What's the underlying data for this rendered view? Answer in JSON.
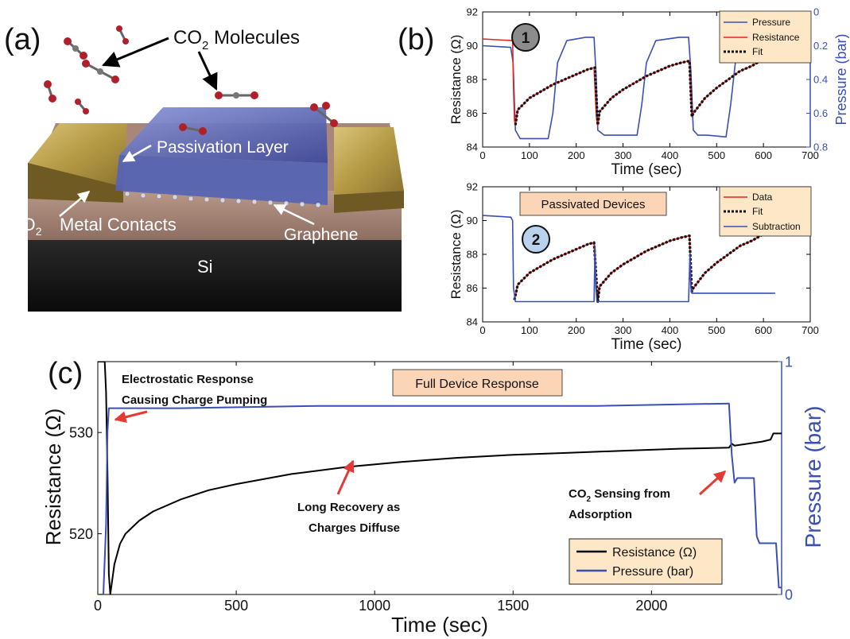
{
  "panel_labels": {
    "a": "(a)",
    "b": "(b)",
    "c": "(c)"
  },
  "panel_a": {
    "co2_label": "CO",
    "co2_sub": "2",
    "co2_tail": " Molecules",
    "passivation": "Passivation Layer",
    "sio2_main": "SiO",
    "sio2_sub": "2",
    "metal": "Metal Contacts",
    "graphene": "Graphene",
    "si": "Si"
  },
  "colors": {
    "pressure": "#3a4fb5",
    "resistance": "#e8241b",
    "fit": "#111111",
    "callout_bg": "#fbd5b5",
    "legend_bg": "#fde7c6",
    "annotation_arrow": "#e33b33",
    "black_trace": "#000000"
  },
  "chart_data": [
    {
      "id": "b1",
      "type": "line",
      "marker": "1",
      "xlabel": "Time (sec)",
      "ylabel": "Resistance (Ω)",
      "y2label": "Pressure (bar)",
      "xlim": [
        0,
        700
      ],
      "ylim": [
        84,
        92
      ],
      "y2lim": [
        0.8,
        0
      ],
      "xticks": [
        "0",
        "100",
        "200",
        "300",
        "400",
        "500",
        "600",
        "700"
      ],
      "yticks": [
        "84",
        "86",
        "88",
        "90",
        "92"
      ],
      "y2ticks": [
        "0.8",
        "0.6",
        "0.4",
        "0.2",
        "0"
      ],
      "legend": [
        "Pressure",
        "Resistance",
        "Fit"
      ],
      "series": [
        {
          "name": "Pressure",
          "axis": "right",
          "x": [
            0,
            60,
            65,
            70,
            80,
            100,
            140,
            150,
            160,
            180,
            220,
            238,
            242,
            246,
            260,
            300,
            330,
            340,
            350,
            370,
            420,
            440,
            445,
            450,
            460,
            480,
            520,
            530,
            540,
            560,
            600
          ],
          "y": [
            0.2,
            0.21,
            0.3,
            0.7,
            0.75,
            0.75,
            0.75,
            0.6,
            0.3,
            0.17,
            0.15,
            0.15,
            0.35,
            0.7,
            0.73,
            0.73,
            0.73,
            0.55,
            0.3,
            0.17,
            0.15,
            0.15,
            0.35,
            0.7,
            0.73,
            0.73,
            0.74,
            0.55,
            0.3,
            0.17,
            0.15
          ]
        },
        {
          "name": "Resistance",
          "axis": "left",
          "x": [
            0,
            64,
            66,
            68,
            70,
            75,
            100,
            125,
            150,
            175,
            200,
            225,
            238,
            240,
            243,
            246,
            250,
            275,
            300,
            325,
            350,
            375,
            400,
            425,
            442,
            444,
            447,
            450,
            475,
            500,
            525,
            550,
            575,
            600
          ],
          "y": [
            90.4,
            90.3,
            87.5,
            85.6,
            85.3,
            86.2,
            86.9,
            87.3,
            87.7,
            88.0,
            88.3,
            88.6,
            88.7,
            87.5,
            85.8,
            85.3,
            86.1,
            86.9,
            87.4,
            87.8,
            88.2,
            88.5,
            88.8,
            89.0,
            89.1,
            87.6,
            85.8,
            86.0,
            86.9,
            87.5,
            88.0,
            88.5,
            88.8,
            89.2
          ]
        },
        {
          "name": "Fit",
          "axis": "left",
          "x": [
            70,
            75,
            100,
            125,
            150,
            175,
            200,
            225,
            240,
            246,
            250,
            275,
            300,
            325,
            350,
            375,
            400,
            425,
            442,
            447,
            450,
            475,
            500,
            525,
            550,
            575,
            600
          ],
          "y": [
            85.3,
            86.2,
            86.9,
            87.3,
            87.7,
            88.0,
            88.3,
            88.6,
            88.7,
            85.3,
            86.1,
            86.9,
            87.4,
            87.8,
            88.2,
            88.5,
            88.8,
            89.0,
            89.1,
            85.8,
            86.0,
            86.9,
            87.5,
            88.0,
            88.5,
            88.8,
            89.2
          ]
        }
      ]
    },
    {
      "id": "b2",
      "type": "line",
      "marker": "2",
      "callout": "Passivated Devices",
      "xlabel": "Time (sec)",
      "ylabel": "Resistance (Ω)",
      "xlim": [
        0,
        700
      ],
      "ylim": [
        84,
        92
      ],
      "xticks": [
        "0",
        "100",
        "200",
        "300",
        "400",
        "500",
        "600",
        "700"
      ],
      "yticks": [
        "84",
        "86",
        "88",
        "90",
        "92"
      ],
      "legend": [
        "Data",
        "Fit",
        "Subtraction"
      ],
      "series": [
        {
          "name": "Data",
          "axis": "left",
          "x": [
            68,
            75,
            100,
            125,
            150,
            175,
            200,
            225,
            238,
            242,
            246,
            250,
            275,
            300,
            325,
            350,
            375,
            400,
            425,
            442,
            446,
            450,
            475,
            500,
            525,
            550,
            575,
            600
          ],
          "y": [
            85.3,
            86.2,
            86.9,
            87.3,
            87.7,
            88.0,
            88.3,
            88.6,
            88.7,
            86.5,
            85.2,
            86.1,
            86.9,
            87.4,
            87.8,
            88.2,
            88.5,
            88.8,
            89.0,
            89.1,
            85.8,
            86.0,
            86.9,
            87.5,
            88.0,
            88.5,
            88.8,
            89.2
          ]
        },
        {
          "name": "Fit",
          "axis": "left",
          "x": [
            68,
            75,
            100,
            125,
            150,
            175,
            200,
            225,
            238,
            246,
            250,
            275,
            300,
            325,
            350,
            375,
            400,
            425,
            442,
            447,
            450,
            475,
            500,
            525,
            550,
            575,
            600
          ],
          "y": [
            85.3,
            86.2,
            86.9,
            87.3,
            87.7,
            88.0,
            88.3,
            88.6,
            88.7,
            85.2,
            86.1,
            86.9,
            87.4,
            87.8,
            88.2,
            88.5,
            88.8,
            89.0,
            89.1,
            85.8,
            86.0,
            86.9,
            87.5,
            88.0,
            88.5,
            88.8,
            89.2
          ]
        },
        {
          "name": "Subtraction",
          "axis": "left",
          "x": [
            0,
            60,
            64,
            66,
            70,
            80,
            200,
            238,
            240,
            242,
            244,
            246,
            260,
            440,
            443,
            445,
            447,
            450,
            500,
            625
          ],
          "y": [
            90.3,
            90.2,
            90.0,
            86.0,
            85.2,
            85.2,
            85.2,
            85.2,
            88.5,
            86.0,
            85.2,
            85.2,
            85.2,
            85.2,
            88.0,
            86.0,
            85.7,
            85.7,
            85.7,
            85.7
          ]
        }
      ]
    },
    {
      "id": "c",
      "type": "line",
      "callout": "Full Device Response",
      "xlabel": "Time (sec)",
      "ylabel": "Resistance (Ω)",
      "y2label": "Pressure (bar)",
      "xlim": [
        0,
        2470
      ],
      "ylim": [
        514,
        537
      ],
      "y2lim": [
        0,
        1
      ],
      "xticks": [
        "0",
        "500",
        "1000",
        "1500",
        "2000"
      ],
      "yticks": [
        "520",
        "530"
      ],
      "y2ticks": [
        "0",
        "1"
      ],
      "legend": [
        "Resistance (Ω)",
        "Pressure (bar)"
      ],
      "annotations": [
        {
          "line1": "Electrostatic Response",
          "line2": "Causing Charge Pumping"
        },
        {
          "line1": "Long Recovery as",
          "line2": "Charges Diffuse"
        },
        {
          "line1": "CO",
          "line1_sub": "2",
          "line1_tail": " Sensing from",
          "line2": "Adsorption"
        }
      ],
      "series": [
        {
          "name": "Resistance (Ω)",
          "axis": "left",
          "x": [
            0,
            25,
            30,
            35,
            40,
            45,
            50,
            60,
            80,
            100,
            150,
            200,
            300,
            400,
            500,
            700,
            900,
            1100,
            1300,
            1500,
            1700,
            1900,
            2100,
            2280,
            2290,
            2300,
            2400,
            2430,
            2440,
            2470
          ],
          "y": [
            537,
            537,
            534,
            526,
            516,
            514,
            515,
            517,
            519,
            520,
            521.3,
            522.2,
            523.4,
            524.3,
            524.9,
            525.9,
            526.6,
            527.1,
            527.5,
            527.8,
            528.0,
            528.2,
            528.4,
            528.5,
            528.9,
            528.7,
            529.1,
            529.3,
            529.9,
            529.9
          ]
        },
        {
          "name": "Pressure (bar)",
          "axis": "right",
          "x": [
            0,
            20,
            30,
            35,
            40,
            45,
            55,
            300,
            800,
            1300,
            1800,
            2280,
            2290,
            2300,
            2310,
            2320,
            2370,
            2380,
            2390,
            2450,
            2460,
            2470
          ],
          "y": [
            0,
            0,
            0.3,
            0.7,
            0.8,
            0.8,
            0.8,
            0.8,
            0.81,
            0.81,
            0.81,
            0.82,
            0.6,
            0.48,
            0.5,
            0.5,
            0.5,
            0.25,
            0.22,
            0.22,
            0.03,
            0.03
          ]
        }
      ]
    }
  ]
}
